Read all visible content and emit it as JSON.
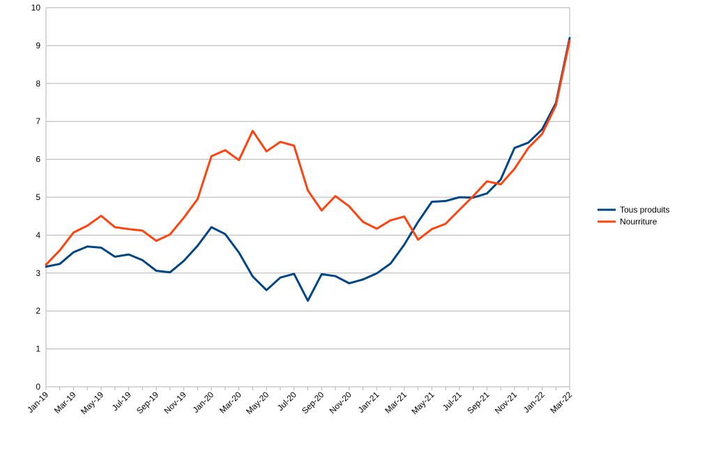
{
  "chart_data": {
    "type": "line",
    "title": "",
    "xlabel": "",
    "ylabel": "",
    "ylim": [
      0,
      10
    ],
    "yticks": [
      "0",
      "1",
      "2",
      "3",
      "4",
      "5",
      "6",
      "7",
      "8",
      "9",
      "10"
    ],
    "grid": true,
    "legend_position": "right",
    "x": [
      "Jan-19",
      "Feb-19",
      "Mar-19",
      "Apr-19",
      "May-19",
      "Jun-19",
      "Jul-19",
      "Aug-19",
      "Sep-19",
      "Oct-19",
      "Nov-19",
      "Dec-19",
      "Jan-20",
      "Feb-20",
      "Mar-20",
      "Apr-20",
      "May-20",
      "Jun-20",
      "Jul-20",
      "Aug-20",
      "Sep-20",
      "Oct-20",
      "Nov-20",
      "Dec-20",
      "Jan-21",
      "Feb-21",
      "Mar-21",
      "Apr-21",
      "May-21",
      "Jun-21",
      "Jul-21",
      "Aug-21",
      "Sep-21",
      "Oct-21",
      "Nov-21",
      "Dec-21",
      "Jan-22",
      "Feb-22",
      "Mar-22"
    ],
    "x_tick_labels": [
      "Jan-19",
      "Mar-19",
      "May-19",
      "Jul-19",
      "Sep-19",
      "Nov-19",
      "Jan-20",
      "Mar-20",
      "May-20",
      "Jul-20",
      "Sep-20",
      "Nov-20",
      "Jan-21",
      "Mar-21",
      "May-21",
      "Jul-21",
      "Sep-21",
      "Nov-21",
      "Jan-22",
      "Mar-22"
    ],
    "series": [
      {
        "name": "Tous produits",
        "color": "#004586",
        "values": [
          3.17,
          3.24,
          3.55,
          3.7,
          3.67,
          3.43,
          3.49,
          3.34,
          3.06,
          3.02,
          3.32,
          3.72,
          4.21,
          4.03,
          3.54,
          2.91,
          2.55,
          2.88,
          2.98,
          2.27,
          2.97,
          2.92,
          2.73,
          2.83,
          2.99,
          3.25,
          3.75,
          4.35,
          4.88,
          4.9,
          5.0,
          4.99,
          5.1,
          5.47,
          6.3,
          6.44,
          6.79,
          7.48,
          9.2
        ]
      },
      {
        "name": "Nourriture",
        "color": "#ff420e",
        "values": [
          3.22,
          3.6,
          4.07,
          4.25,
          4.51,
          4.21,
          4.16,
          4.12,
          3.85,
          4.02,
          4.46,
          4.95,
          6.08,
          6.24,
          5.98,
          6.75,
          6.21,
          6.46,
          6.36,
          5.18,
          4.65,
          5.03,
          4.76,
          4.35,
          4.17,
          4.39,
          4.49,
          3.88,
          4.16,
          4.3,
          4.67,
          5.03,
          5.42,
          5.34,
          5.75,
          6.3,
          6.67,
          7.42,
          9.13
        ]
      }
    ]
  }
}
